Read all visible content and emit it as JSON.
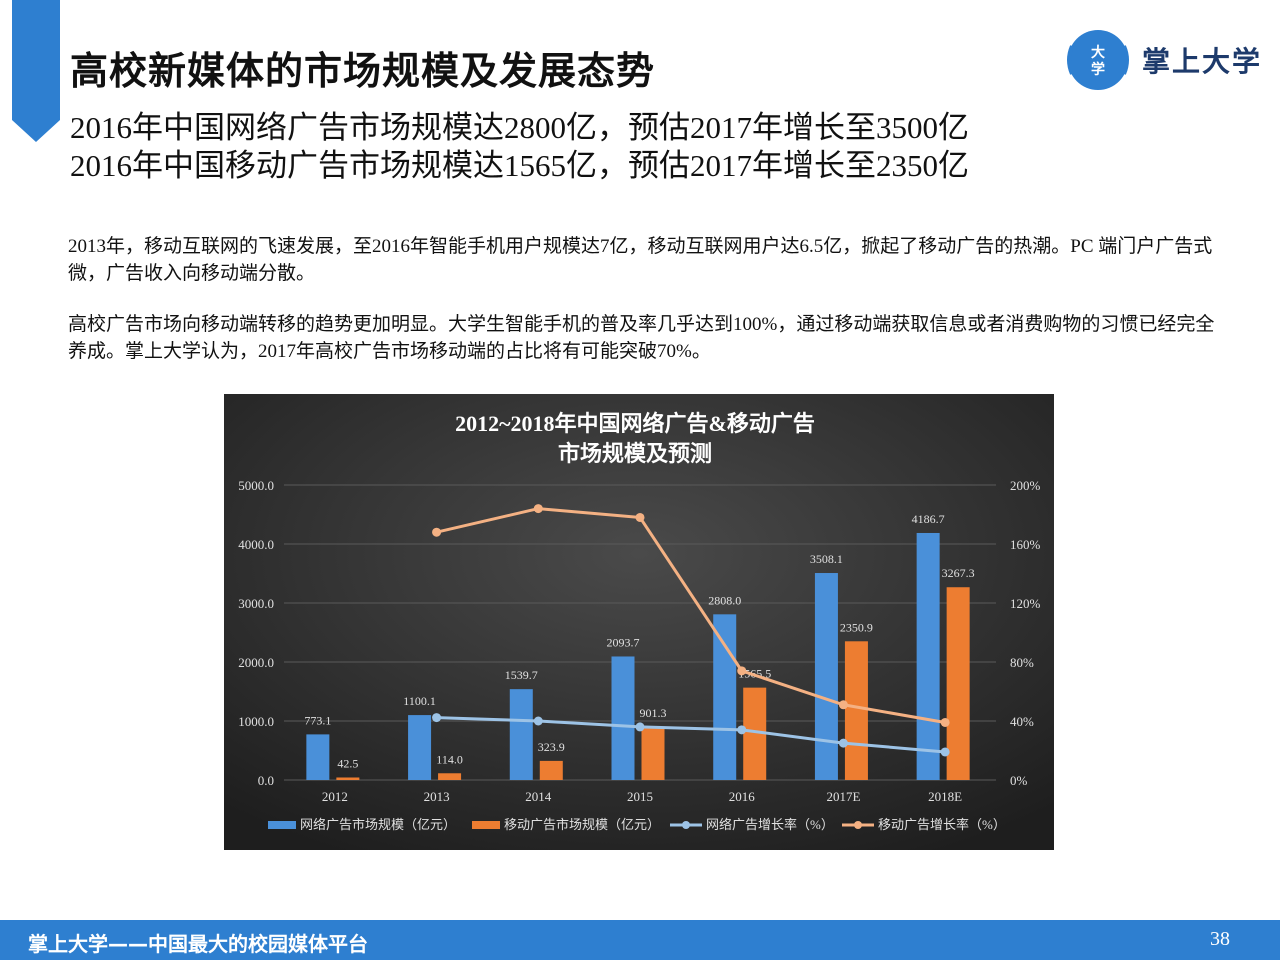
{
  "page": {
    "title": "高校新媒体的市场规模及发展态势",
    "headline1": "2016年中国网络广告市场规模达2800亿，预估2017年增长至3500亿",
    "headline2": "2016年中国移动广告市场规模达1565亿，预估2017年增长至2350亿",
    "para1": "2013年，移动互联网的飞速发展，至2016年智能手机用户规模达7亿，移动互联网用户达6.5亿，掀起了移动广告的热潮。PC 端门户广告式微，广告收入向移动端分散。",
    "para2": "高校广告市场向移动端转移的趋势更加明显。大学生智能手机的普及率几乎达到100%，通过移动端获取信息或者消费购物的习惯已经完全养成。掌上大学认为，2017年高校广告市场移动端的占比将有可能突破70%。"
  },
  "logo": {
    "mark_text": "大学",
    "brand": "掌上大学"
  },
  "footer": {
    "text": "掌上大学——中国最大的校园媒体平台",
    "page_number": "38"
  },
  "colors": {
    "accent": "#2e7fd0",
    "net_bar": "#4a90d9",
    "mobile_bar": "#ed7d31",
    "net_line": "#9dc3e6",
    "mobile_line": "#f4b183",
    "chart_bg": "#2b2b2b"
  },
  "chart_data": {
    "type": "bar",
    "title_line1": "2012~2018年中国网络广告&移动广告",
    "title_line2": "市场规模及预测",
    "categories": [
      "2012",
      "2013",
      "2014",
      "2015",
      "2016",
      "2017E",
      "2018E"
    ],
    "left_axis": {
      "ylim": [
        0,
        5000
      ],
      "ticks": [
        "0.0",
        "1000.0",
        "2000.0",
        "3000.0",
        "4000.0",
        "5000.0"
      ]
    },
    "right_axis": {
      "ylim": [
        0,
        200
      ],
      "ticks": [
        "0%",
        "40%",
        "80%",
        "120%",
        "160%",
        "200%"
      ]
    },
    "legend_position": "bottom",
    "series": [
      {
        "name": "网络广告市场规模（亿元）",
        "kind": "bar",
        "axis": "left",
        "values": [
          773.1,
          1100.1,
          1539.7,
          2093.7,
          2808.0,
          3508.1,
          4186.7
        ],
        "labels": [
          "773.1",
          "1100.1",
          "1539.7",
          "2093.7",
          "2808.0",
          "3508.1",
          "4186.7"
        ]
      },
      {
        "name": "移动广告市场规模（亿元）",
        "kind": "bar",
        "axis": "left",
        "values": [
          42.5,
          114.0,
          323.9,
          901.3,
          1565.5,
          2350.9,
          3267.3
        ],
        "labels": [
          "42.5",
          "114.0",
          "323.9",
          "901.3",
          "1565.5",
          "2350.9",
          "3267.3"
        ]
      },
      {
        "name": "网络广告增长率（%）",
        "kind": "line",
        "axis": "right",
        "values": [
          null,
          42.3,
          40,
          36,
          34,
          25,
          19
        ]
      },
      {
        "name": "移动广告增长率（%）",
        "kind": "line",
        "axis": "right",
        "values": [
          null,
          168,
          184,
          178,
          74,
          51,
          39
        ]
      }
    ]
  }
}
